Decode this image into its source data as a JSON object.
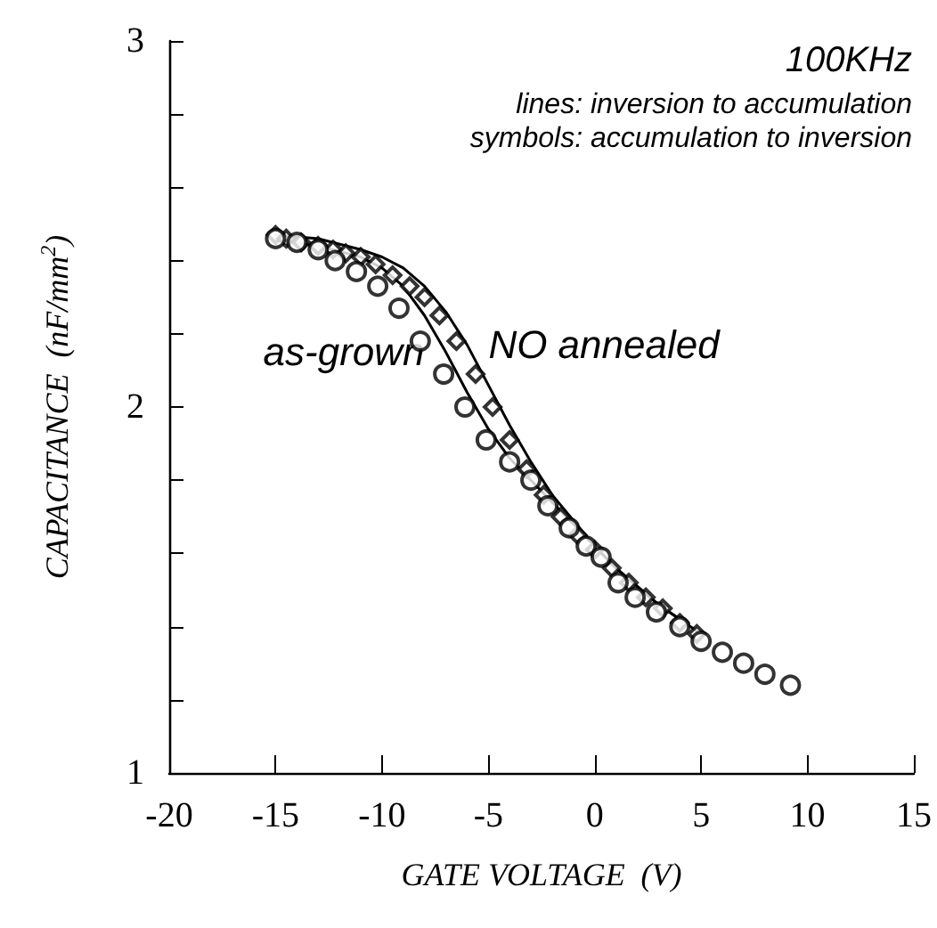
{
  "chart_data": {
    "type": "line",
    "xlabel": "GATE VOLTAGE  (V)",
    "ylabel": "CAPACITANCE  (nF/mm$^{2}$)",
    "annotations": [
      "100KHz",
      "lines: inversion to accumulation",
      "symbols: accumulation to inversion"
    ],
    "xlim": [
      -20,
      15
    ],
    "xticks": [
      -20,
      -15,
      -10,
      -5,
      0,
      5,
      10,
      15
    ],
    "ylim": [
      1,
      3
    ],
    "yticks": [
      1,
      {
        "value": 1.2,
        "label": null
      },
      {
        "value": 1.4,
        "label": null
      },
      {
        "value": 1.6,
        "label": null
      },
      {
        "value": 1.8,
        "label": null
      },
      2,
      {
        "value": 2.2,
        "label": null
      },
      {
        "value": 2.4,
        "label": null
      },
      {
        "value": 2.6,
        "label": null
      },
      {
        "value": 2.8,
        "label": null
      },
      3
    ],
    "grid": false,
    "legend": false,
    "series": [
      {
        "name": "as-grown",
        "marker": "none",
        "color": "#000000",
        "x": [
          -15,
          -13,
          -11,
          -10,
          -9,
          -8,
          -7,
          -6,
          -5,
          -4,
          -3,
          -2,
          -1,
          0,
          1,
          2,
          3,
          4
        ],
        "values": [
          2.46,
          2.44,
          2.41,
          2.38,
          2.33,
          2.25,
          2.15,
          2.04,
          1.94,
          1.86,
          1.8,
          1.74,
          1.68,
          1.62,
          1.56,
          1.51,
          1.46,
          1.42
        ]
      },
      {
        "name": "NO annealed",
        "marker": "none",
        "color": "#000000",
        "x": [
          -15,
          -13,
          -11,
          -10,
          -9,
          -8,
          -7,
          -6,
          -5,
          -4,
          -3,
          -2,
          -1,
          0,
          1,
          2,
          3,
          4,
          5
        ],
        "values": [
          2.47,
          2.46,
          2.43,
          2.41,
          2.38,
          2.33,
          2.26,
          2.17,
          2.06,
          1.95,
          1.85,
          1.76,
          1.69,
          1.62,
          1.56,
          1.51,
          1.46,
          1.42,
          1.38
        ]
      },
      {
        "type": "scatter",
        "marker": "circle",
        "color": "#000000",
        "x": [
          -15,
          -14,
          -13,
          -12.2,
          -11.2,
          -10.2,
          -9.2,
          -8.2,
          -7.1,
          -6.1,
          -5.1,
          -4,
          -3,
          -2.2,
          -1.2,
          -0.4,
          0.3,
          1.1,
          1.9,
          2.9,
          4,
          5,
          6,
          7,
          8,
          9.2
        ],
        "values": [
          2.46,
          2.45,
          2.43,
          2.4,
          2.37,
          2.33,
          2.27,
          2.18,
          2.09,
          2.0,
          1.91,
          1.85,
          1.8,
          1.73,
          1.67,
          1.62,
          1.59,
          1.52,
          1.48,
          1.44,
          1.4,
          1.36,
          1.33,
          1.3,
          1.27,
          1.24
        ]
      },
      {
        "type": "scatter",
        "marker": "diamond",
        "color": "#000000",
        "x": [
          -15,
          -14.5,
          -13.8,
          -13,
          -12.3,
          -11.7,
          -11,
          -10.3,
          -9.5,
          -8.7,
          -8,
          -7.3,
          -6.5,
          -5.6,
          -4.8,
          -4,
          -3.2,
          -2.4,
          -1.6,
          -0.8,
          0,
          0.8,
          1.6,
          2.4,
          3.2,
          4,
          4.8
        ],
        "values": [
          2.47,
          2.46,
          2.45,
          2.44,
          2.43,
          2.42,
          2.41,
          2.39,
          2.36,
          2.33,
          2.3,
          2.25,
          2.18,
          2.09,
          2.0,
          1.91,
          1.83,
          1.76,
          1.7,
          1.65,
          1.61,
          1.56,
          1.52,
          1.48,
          1.45,
          1.41,
          1.38
        ]
      }
    ]
  }
}
